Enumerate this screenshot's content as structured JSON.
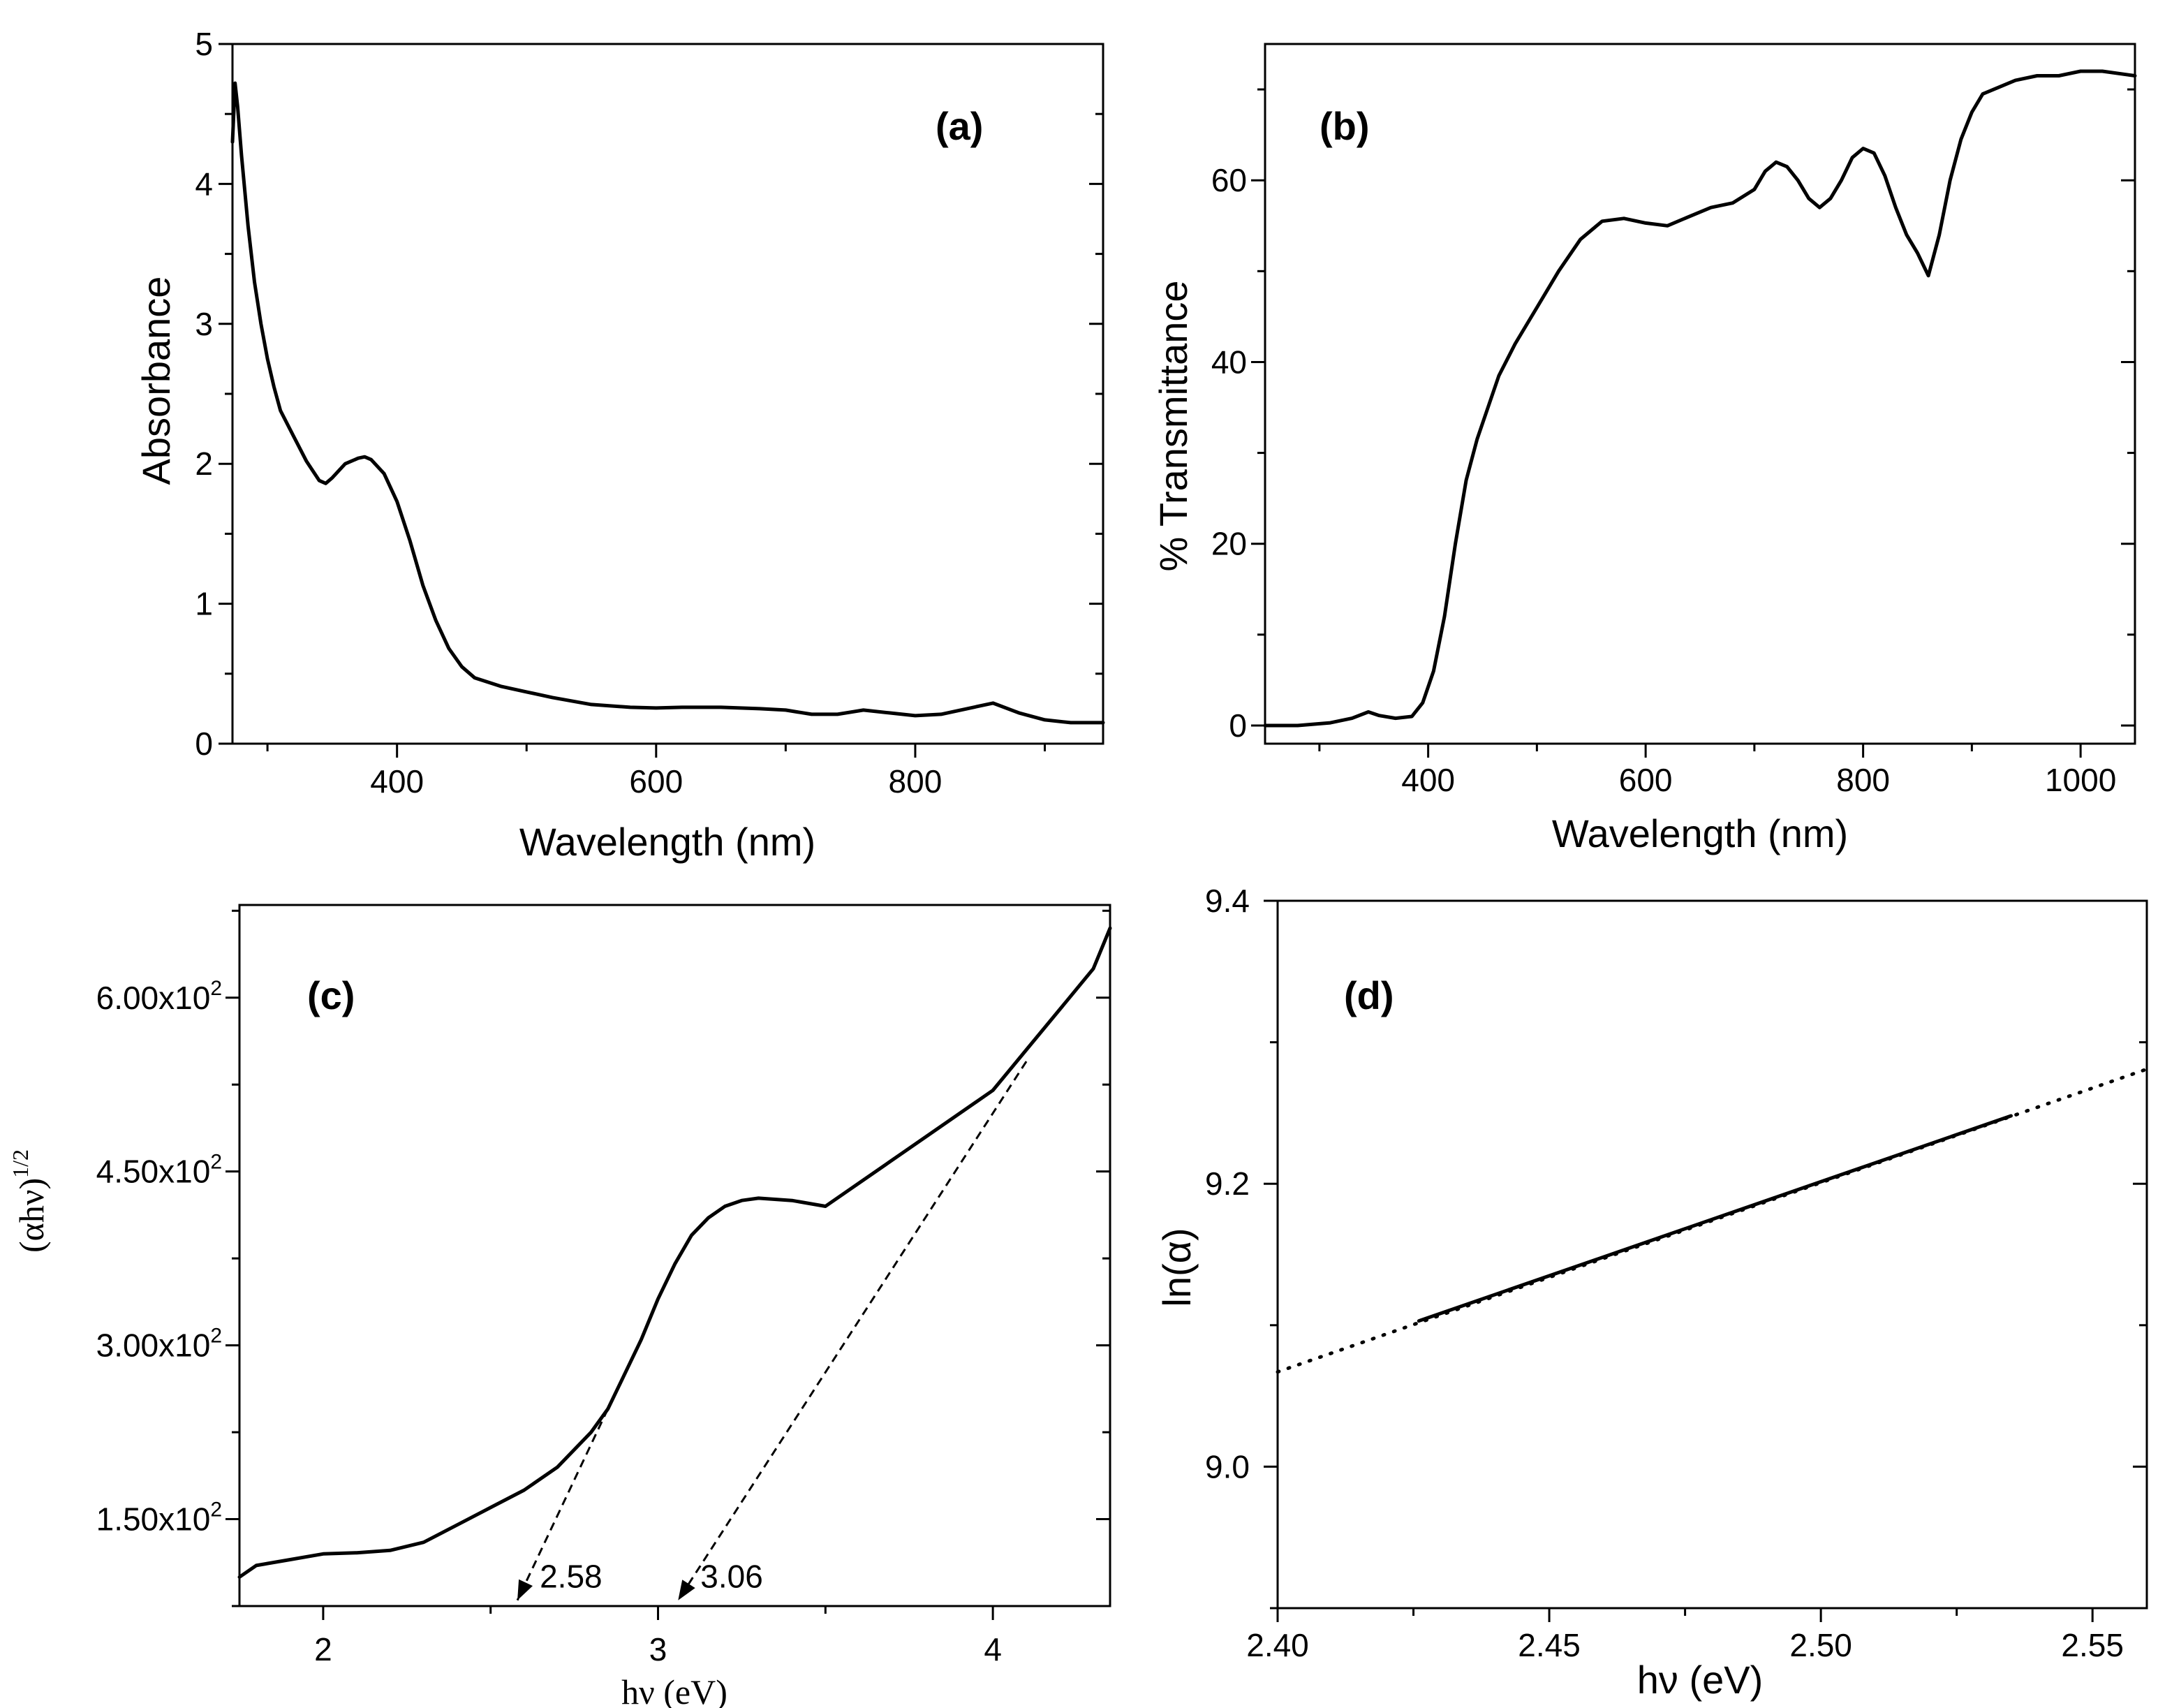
{
  "chart_data": [
    {
      "id": "a",
      "type": "line",
      "panel_label": "(a)",
      "xlabel": "Wavelength (nm)",
      "ylabel": "Absorbance",
      "xlim": [
        273,
        945
      ],
      "ylim": [
        0,
        5
      ],
      "xticks": [
        400,
        600,
        800
      ],
      "xtick_labels": [
        "400",
        "600",
        "800"
      ],
      "yticks": [
        0,
        1,
        2,
        3,
        4,
        5
      ],
      "ytick_labels": [
        "0",
        "1",
        "2",
        "3",
        "4",
        "5"
      ],
      "series": [
        {
          "name": "Absorbance",
          "color": "#000000",
          "x": [
            273,
            275,
            277,
            280,
            285,
            290,
            295,
            300,
            305,
            310,
            320,
            330,
            340,
            345,
            350,
            360,
            370,
            375,
            380,
            390,
            400,
            410,
            420,
            430,
            440,
            450,
            460,
            480,
            500,
            520,
            550,
            580,
            600,
            620,
            650,
            680,
            700,
            720,
            740,
            760,
            780,
            800,
            820,
            840,
            860,
            880,
            900,
            920,
            945
          ],
          "y": [
            4.3,
            4.72,
            4.55,
            4.2,
            3.7,
            3.3,
            3.0,
            2.75,
            2.55,
            2.38,
            2.2,
            2.02,
            1.88,
            1.86,
            1.9,
            2.0,
            2.04,
            2.05,
            2.03,
            1.93,
            1.73,
            1.45,
            1.13,
            0.88,
            0.68,
            0.55,
            0.47,
            0.41,
            0.37,
            0.33,
            0.28,
            0.26,
            0.255,
            0.26,
            0.26,
            0.25,
            0.24,
            0.21,
            0.21,
            0.24,
            0.22,
            0.2,
            0.21,
            0.25,
            0.29,
            0.22,
            0.17,
            0.15,
            0.15
          ]
        }
      ]
    },
    {
      "id": "b",
      "type": "line",
      "panel_label": "(b)",
      "xlabel": "Wavelength (nm)",
      "ylabel": "% Transmittance",
      "xlim": [
        250,
        1050
      ],
      "ylim": [
        -2,
        75
      ],
      "xticks": [
        400,
        600,
        800,
        1000
      ],
      "xtick_labels": [
        "400",
        "600",
        "800",
        "1000"
      ],
      "yticks": [
        0,
        20,
        40,
        60
      ],
      "ytick_labels": [
        "0",
        "20",
        "40",
        "60"
      ],
      "series": [
        {
          "name": "Transmittance",
          "color": "#000000",
          "x": [
            250,
            280,
            310,
            330,
            345,
            355,
            370,
            385,
            395,
            405,
            415,
            425,
            435,
            445,
            455,
            465,
            480,
            500,
            520,
            540,
            560,
            580,
            600,
            620,
            640,
            660,
            680,
            700,
            710,
            720,
            730,
            740,
            750,
            760,
            770,
            780,
            790,
            800,
            810,
            820,
            830,
            840,
            850,
            860,
            870,
            880,
            890,
            900,
            910,
            920,
            930,
            940,
            960,
            980,
            1000,
            1020,
            1050
          ],
          "y": [
            0,
            0,
            0.3,
            0.8,
            1.5,
            1.1,
            0.8,
            1.0,
            2.5,
            6.0,
            12.0,
            20.0,
            27.0,
            31.5,
            35.0,
            38.5,
            42.0,
            46.0,
            50.0,
            53.5,
            55.5,
            55.8,
            55.3,
            55.0,
            56.0,
            57.0,
            57.5,
            59.0,
            61.0,
            62.0,
            61.5,
            60.0,
            58.0,
            57.0,
            58.0,
            60.0,
            62.5,
            63.5,
            63.0,
            60.5,
            57.0,
            54.0,
            52.0,
            49.5,
            54.0,
            60.0,
            64.5,
            67.5,
            69.5,
            70.0,
            70.5,
            71.0,
            71.5,
            71.5,
            72.0,
            72.0,
            71.5
          ]
        }
      ]
    },
    {
      "id": "c",
      "type": "line",
      "panel_label": "(c)",
      "xlabel": "hν (eV)",
      "ylabel": "(αhν)1/2",
      "xlim": [
        1.75,
        4.35
      ],
      "ylim": [
        75,
        680
      ],
      "xticks": [
        2,
        3,
        4
      ],
      "xtick_labels": [
        "2",
        "3",
        "4"
      ],
      "yticks": [
        150,
        300,
        450,
        600
      ],
      "ytick_labels": [
        "1.50x102",
        "3.00x102",
        "4.50x102",
        "6.00x102"
      ],
      "series": [
        {
          "name": "(αhν)^1/2",
          "color": "#000000",
          "x": [
            1.75,
            1.8,
            1.9,
            2.0,
            2.1,
            2.2,
            2.3,
            2.4,
            2.5,
            2.6,
            2.7,
            2.8,
            2.85,
            2.9,
            2.95,
            3.0,
            3.05,
            3.1,
            3.15,
            3.2,
            3.25,
            3.3,
            3.4,
            3.5,
            3.6,
            3.7,
            3.8,
            3.9,
            4.0,
            4.1,
            4.2,
            4.3,
            4.35
          ],
          "y": [
            100,
            110,
            115,
            120,
            121,
            123,
            130,
            145,
            160,
            175,
            195,
            225,
            245,
            275,
            305,
            340,
            370,
            395,
            410,
            420,
            425,
            427,
            425,
            420,
            440,
            460,
            480,
            500,
            520,
            555,
            590,
            625,
            660
          ]
        }
      ],
      "fits": [
        {
          "from": [
            2.85,
            245
          ],
          "to": [
            2.58,
            80
          ],
          "label": "2.58"
        },
        {
          "from": [
            4.1,
            545
          ],
          "to": [
            3.06,
            80
          ],
          "label": "3.06"
        }
      ]
    },
    {
      "id": "d",
      "type": "line",
      "panel_label": "(d)",
      "xlabel": "hν (eV)",
      "ylabel": "ln(α)",
      "xlim": [
        2.4,
        2.56
      ],
      "ylim": [
        8.9,
        9.4
      ],
      "xticks": [
        2.4,
        2.45,
        2.5,
        2.55
      ],
      "xtick_labels": [
        "2.40",
        "2.45",
        "2.50",
        "2.55"
      ],
      "yticks": [
        9.0,
        9.2,
        9.4
      ],
      "ytick_labels": [
        "9.0",
        "9.2",
        "9.4"
      ],
      "series": [
        {
          "name": "data",
          "style": "dotted",
          "color": "#000000",
          "x": [
            2.4,
            2.56
          ],
          "y": [
            9.067,
            9.281
          ]
        },
        {
          "name": "linear fit",
          "style": "solid",
          "color": "#ff0000",
          "x": [
            2.426,
            2.535
          ],
          "y": [
            9.103,
            9.248
          ]
        }
      ]
    }
  ]
}
